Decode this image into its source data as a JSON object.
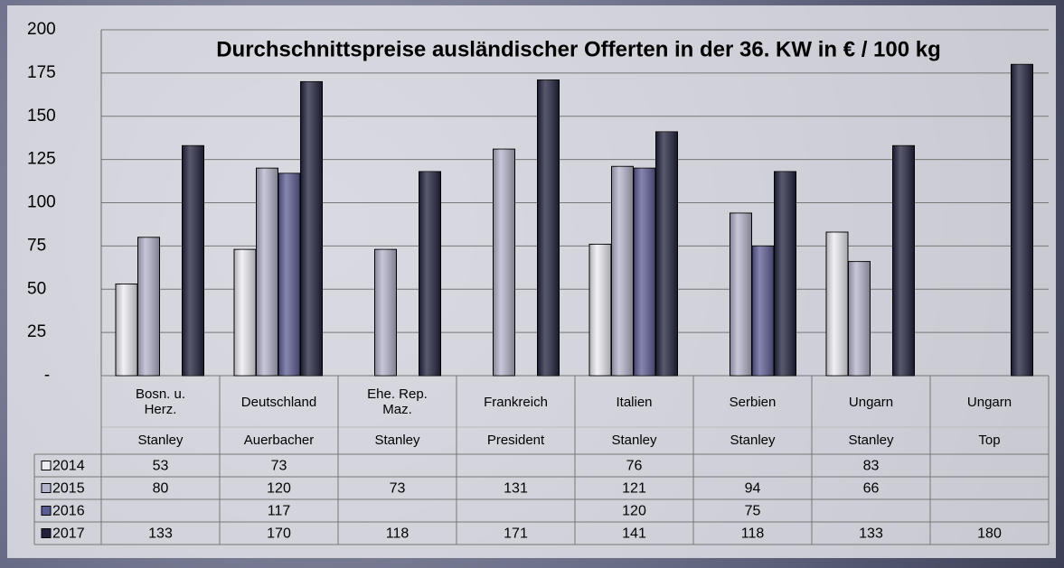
{
  "chart_data": {
    "type": "bar",
    "title": "Durchschnittspreise ausländischer Offerten in der 36. KW in € / 100 kg",
    "categories": [
      "Bosn. u. Herz.",
      "Deutschland",
      "Ehe. Rep. Maz.",
      "Frankreich",
      "Italien",
      "Serbien",
      "Ungarn",
      "Ungarn"
    ],
    "varieties": [
      "Stanley",
      "Auerbacher",
      "Stanley",
      "President",
      "Stanley",
      "Stanley",
      "Stanley",
      "Top"
    ],
    "series": [
      {
        "name": "2014",
        "color": "#ececf2",
        "values": [
          53,
          73,
          null,
          null,
          76,
          null,
          83,
          null
        ]
      },
      {
        "name": "2015",
        "color": "#b4b4cc",
        "values": [
          80,
          120,
          73,
          131,
          121,
          94,
          66,
          null
        ]
      },
      {
        "name": "2016",
        "color": "#5c5c94",
        "values": [
          null,
          117,
          null,
          null,
          120,
          75,
          null,
          null
        ]
      },
      {
        "name": "2017",
        "color": "#22223e",
        "values": [
          133,
          170,
          118,
          171,
          141,
          118,
          133,
          180
        ]
      }
    ],
    "ylim": [
      0,
      200
    ],
    "yticks": [
      {
        "value": 0,
        "label": "-"
      },
      25,
      50,
      75,
      100,
      125,
      150,
      175,
      200
    ],
    "grid": true
  }
}
